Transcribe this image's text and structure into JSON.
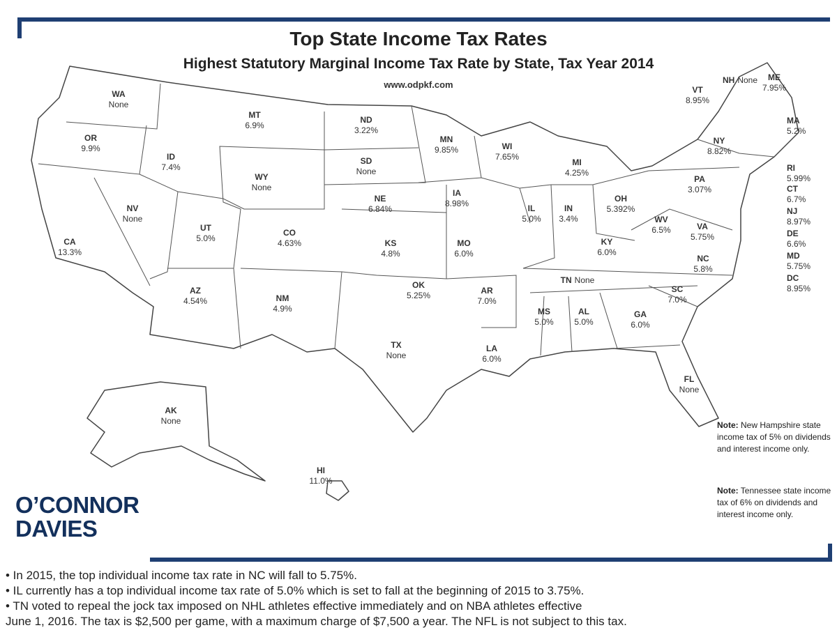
{
  "header": {
    "title": "Top State Income Tax Rates",
    "subtitle": "Highest Statutory Marginal Income Tax Rate by State, Tax Year 2014",
    "url": "www.odpkf.com"
  },
  "states": [
    {
      "abbr": "WA",
      "rate": "None"
    },
    {
      "abbr": "OR",
      "rate": "9.9%"
    },
    {
      "abbr": "CA",
      "rate": "13.3%"
    },
    {
      "abbr": "NV",
      "rate": "None"
    },
    {
      "abbr": "ID",
      "rate": "7.4%"
    },
    {
      "abbr": "MT",
      "rate": "6.9%"
    },
    {
      "abbr": "WY",
      "rate": "None"
    },
    {
      "abbr": "UT",
      "rate": "5.0%"
    },
    {
      "abbr": "CO",
      "rate": "4.63%"
    },
    {
      "abbr": "AZ",
      "rate": "4.54%"
    },
    {
      "abbr": "NM",
      "rate": "4.9%"
    },
    {
      "abbr": "ND",
      "rate": "3.22%"
    },
    {
      "abbr": "SD",
      "rate": "None"
    },
    {
      "abbr": "NE",
      "rate": "6.84%"
    },
    {
      "abbr": "KS",
      "rate": "4.8%"
    },
    {
      "abbr": "OK",
      "rate": "5.25%"
    },
    {
      "abbr": "TX",
      "rate": "None"
    },
    {
      "abbr": "MN",
      "rate": "9.85%"
    },
    {
      "abbr": "IA",
      "rate": "8.98%"
    },
    {
      "abbr": "MO",
      "rate": "6.0%"
    },
    {
      "abbr": "AR",
      "rate": "7.0%"
    },
    {
      "abbr": "LA",
      "rate": "6.0%"
    },
    {
      "abbr": "WI",
      "rate": "7.65%"
    },
    {
      "abbr": "IL",
      "rate": "5.0%"
    },
    {
      "abbr": "MI",
      "rate": "4.25%"
    },
    {
      "abbr": "IN",
      "rate": "3.4%"
    },
    {
      "abbr": "OH",
      "rate": "5.392%"
    },
    {
      "abbr": "KY",
      "rate": "6.0%"
    },
    {
      "abbr": "TN",
      "rate": "None"
    },
    {
      "abbr": "MS",
      "rate": "5.0%"
    },
    {
      "abbr": "AL",
      "rate": "5.0%"
    },
    {
      "abbr": "GA",
      "rate": "6.0%"
    },
    {
      "abbr": "FL",
      "rate": "None"
    },
    {
      "abbr": "SC",
      "rate": "7.0%"
    },
    {
      "abbr": "NC",
      "rate": "5.8%"
    },
    {
      "abbr": "VA",
      "rate": "5.75%"
    },
    {
      "abbr": "WV",
      "rate": "6.5%"
    },
    {
      "abbr": "PA",
      "rate": "3.07%"
    },
    {
      "abbr": "NY",
      "rate": "8.82%"
    },
    {
      "abbr": "VT",
      "rate": "8.95%"
    },
    {
      "abbr": "NH",
      "rate": "None"
    },
    {
      "abbr": "ME",
      "rate": "7.95%"
    },
    {
      "abbr": "MA",
      "rate": "5.2%"
    },
    {
      "abbr": "RI",
      "rate": "5.99%"
    },
    {
      "abbr": "CT",
      "rate": "6.7%"
    },
    {
      "abbr": "NJ",
      "rate": "8.97%"
    },
    {
      "abbr": "DE",
      "rate": "6.6%"
    },
    {
      "abbr": "MD",
      "rate": "5.75%"
    },
    {
      "abbr": "DC",
      "rate": "8.95%"
    },
    {
      "abbr": "AK",
      "rate": "None"
    },
    {
      "abbr": "HI",
      "rate": "11.0%"
    }
  ],
  "notes": [
    {
      "label": "Note:",
      "text": "New Hampshire state income tax of 5% on dividends and interest income only."
    },
    {
      "label": "Note:",
      "text": "Tennessee state income tax of 6% on dividends and interest income only."
    }
  ],
  "logo": [
    "O’CONNOR",
    "DAVIES"
  ],
  "footnotes": [
    "• In 2015, the top individual income tax rate in NC will fall to 5.75%.",
    "• IL currently has a top individual income tax rate of 5.0% which is set to fall at the beginning of 2015 to 3.75%.",
    "• TN voted to repeal the jock tax imposed on NHL athletes effective immediately and on NBA athletes effective",
    "June 1, 2016. The tax is $2,500 per game, with a maximum charge of $7,500 a year. The NFL is not subject to this tax."
  ]
}
